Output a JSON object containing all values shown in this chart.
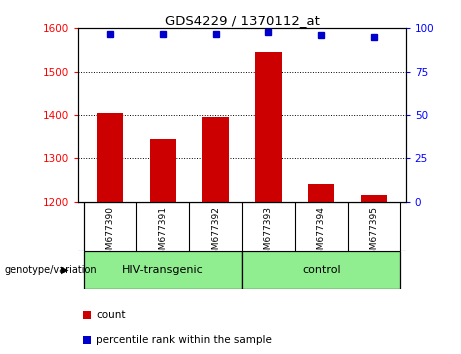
{
  "title": "GDS4229 / 1370112_at",
  "samples": [
    "GSM677390",
    "GSM677391",
    "GSM677392",
    "GSM677393",
    "GSM677394",
    "GSM677395"
  ],
  "bar_values": [
    1405,
    1345,
    1395,
    1545,
    1240,
    1215
  ],
  "percentile_values": [
    97,
    97,
    97,
    98,
    96,
    95
  ],
  "ylim_left": [
    1200,
    1600
  ],
  "ylim_right": [
    0,
    100
  ],
  "yticks_left": [
    1200,
    1300,
    1400,
    1500,
    1600
  ],
  "yticks_right": [
    0,
    25,
    50,
    75,
    100
  ],
  "bar_color": "#cc0000",
  "dot_color": "#0000cc",
  "bar_bottom": 1200,
  "groups": [
    {
      "label": "HIV-transgenic",
      "start": 0,
      "end": 3
    },
    {
      "label": "control",
      "start": 3,
      "end": 6
    }
  ],
  "group_color": "#90ee90",
  "genotype_label": "genotype/variation",
  "legend_count_label": "count",
  "legend_percentile_label": "percentile rank within the sample",
  "background_color": "#ffffff",
  "tick_label_area_color": "#c8c8c8"
}
